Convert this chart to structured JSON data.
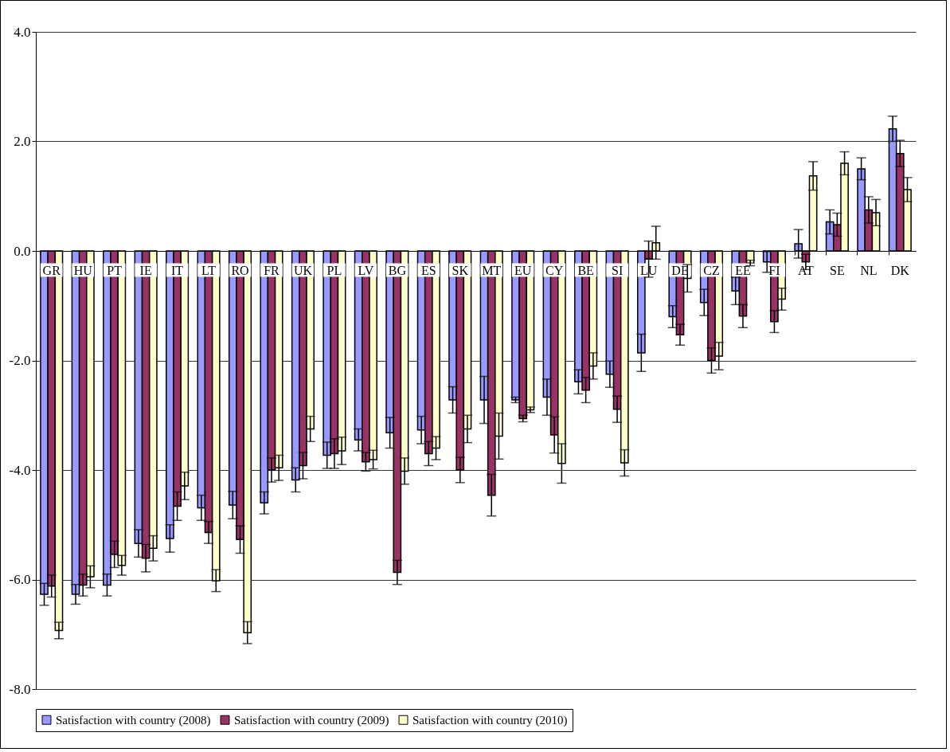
{
  "chart_data": {
    "type": "bar",
    "categories": [
      "GR",
      "HU",
      "PT",
      "IE",
      "IT",
      "LT",
      "RO",
      "FR",
      "UK",
      "PL",
      "LV",
      "BG",
      "ES",
      "SK",
      "MT",
      "EU",
      "CY",
      "BE",
      "SI",
      "LU",
      "DE",
      "CZ",
      "EE",
      "FI",
      "AT",
      "SE",
      "NL",
      "DK"
    ],
    "series": [
      {
        "name": "Satisfaction with country (2008)",
        "color": "#9999ff",
        "values": [
          -6.27,
          -6.27,
          -6.1,
          -5.34,
          -5.25,
          -4.69,
          -4.64,
          -4.6,
          -4.18,
          -3.73,
          -3.45,
          -3.32,
          -3.27,
          -2.72,
          -2.72,
          -2.72,
          -2.67,
          -2.39,
          -2.25,
          -1.86,
          -1.2,
          -0.94,
          -0.73,
          -0.2,
          0.13,
          0.53,
          1.5,
          2.23
        ],
        "errors": [
          0.2,
          0.18,
          0.2,
          0.25,
          0.25,
          0.23,
          0.25,
          0.2,
          0.22,
          0.24,
          0.2,
          0.28,
          0.25,
          0.24,
          0.43,
          0.05,
          0.33,
          0.22,
          0.24,
          0.34,
          0.2,
          0.24,
          0.25,
          0.19,
          0.26,
          0.22,
          0.2,
          0.23
        ]
      },
      {
        "name": "Satisfaction with country (2009)",
        "color": "#993366",
        "values": [
          -6.12,
          -6.1,
          -5.54,
          -5.61,
          -4.66,
          -5.14,
          -5.27,
          -4.0,
          -3.92,
          -3.7,
          -3.85,
          -5.87,
          -3.7,
          -4.0,
          -4.46,
          -3.06,
          -3.36,
          -2.54,
          -2.89,
          -0.15,
          -1.53,
          -2.0,
          -1.19,
          -1.29,
          -0.2,
          0.48,
          0.75,
          1.78
        ],
        "errors": [
          0.2,
          0.2,
          0.24,
          0.25,
          0.26,
          0.2,
          0.25,
          0.22,
          0.24,
          0.27,
          0.17,
          0.22,
          0.22,
          0.23,
          0.38,
          0.06,
          0.33,
          0.23,
          0.24,
          0.33,
          0.19,
          0.23,
          0.21,
          0.2,
          0.14,
          0.21,
          0.24,
          0.24
        ]
      },
      {
        "name": "Satisfaction with country (2010)",
        "color": "#ffffcc",
        "values": [
          -6.93,
          -5.95,
          -5.74,
          -5.43,
          -4.29,
          -6.02,
          -6.97,
          -3.96,
          -3.25,
          -3.65,
          -3.81,
          -4.02,
          -3.6,
          -3.25,
          -3.38,
          -2.9,
          -3.88,
          -2.1,
          -3.87,
          0.15,
          -0.5,
          -1.92,
          -0.22,
          -0.88,
          1.37,
          1.6,
          0.7,
          1.12
        ],
        "errors": [
          0.15,
          0.2,
          0.18,
          0.23,
          0.25,
          0.2,
          0.2,
          0.23,
          0.23,
          0.25,
          0.17,
          0.24,
          0.21,
          0.25,
          0.42,
          0.05,
          0.36,
          0.24,
          0.24,
          0.3,
          0.25,
          0.25,
          0.05,
          0.2,
          0.26,
          0.21,
          0.24,
          0.22
        ]
      }
    ],
    "ylim": [
      -8,
      4
    ],
    "yticks": [
      {
        "value": -8,
        "label": "-8.0"
      },
      {
        "value": -6,
        "label": "-6.0"
      },
      {
        "value": -4,
        "label": "-4.0"
      },
      {
        "value": -2,
        "label": "-2.0"
      },
      {
        "value": 0,
        "label": "0.0"
      },
      {
        "value": 2,
        "label": "2.0"
      },
      {
        "value": 4,
        "label": "4.0"
      }
    ],
    "grid": "y",
    "legend": "bottom"
  }
}
